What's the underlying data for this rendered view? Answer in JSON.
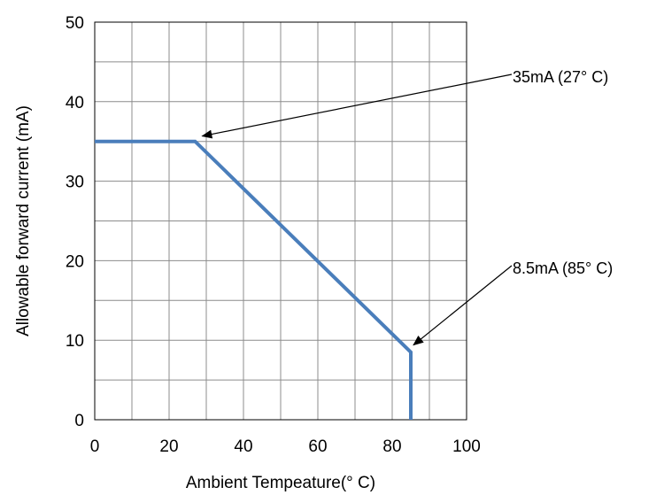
{
  "chart_data": {
    "type": "line",
    "title": "",
    "xlabel": "Ambient  Tempeature(°  C)",
    "ylabel": "Allowable  forward  current  (mA)",
    "xlim": [
      0,
      100
    ],
    "ylim": [
      0,
      50
    ],
    "x_ticks": [
      0,
      20,
      40,
      60,
      80,
      100
    ],
    "y_ticks": [
      0,
      10,
      20,
      30,
      40,
      50
    ],
    "x_minor_grid": [
      10,
      30,
      50,
      70,
      90
    ],
    "y_minor_grid": [
      5,
      15,
      25,
      35,
      45
    ],
    "grid": true,
    "series": [
      {
        "color": "#4a7ebb",
        "points": [
          {
            "x": 0,
            "y": 35
          },
          {
            "x": 27,
            "y": 35
          },
          {
            "x": 85,
            "y": 8.5
          },
          {
            "x": 85,
            "y": 0
          }
        ]
      }
    ],
    "annotations": [
      {
        "text": "35mA  (27°  C)",
        "x": 27,
        "y": 35
      },
      {
        "text": "8.5mA  (85°  C)",
        "x": 85,
        "y": 8.5
      }
    ]
  }
}
